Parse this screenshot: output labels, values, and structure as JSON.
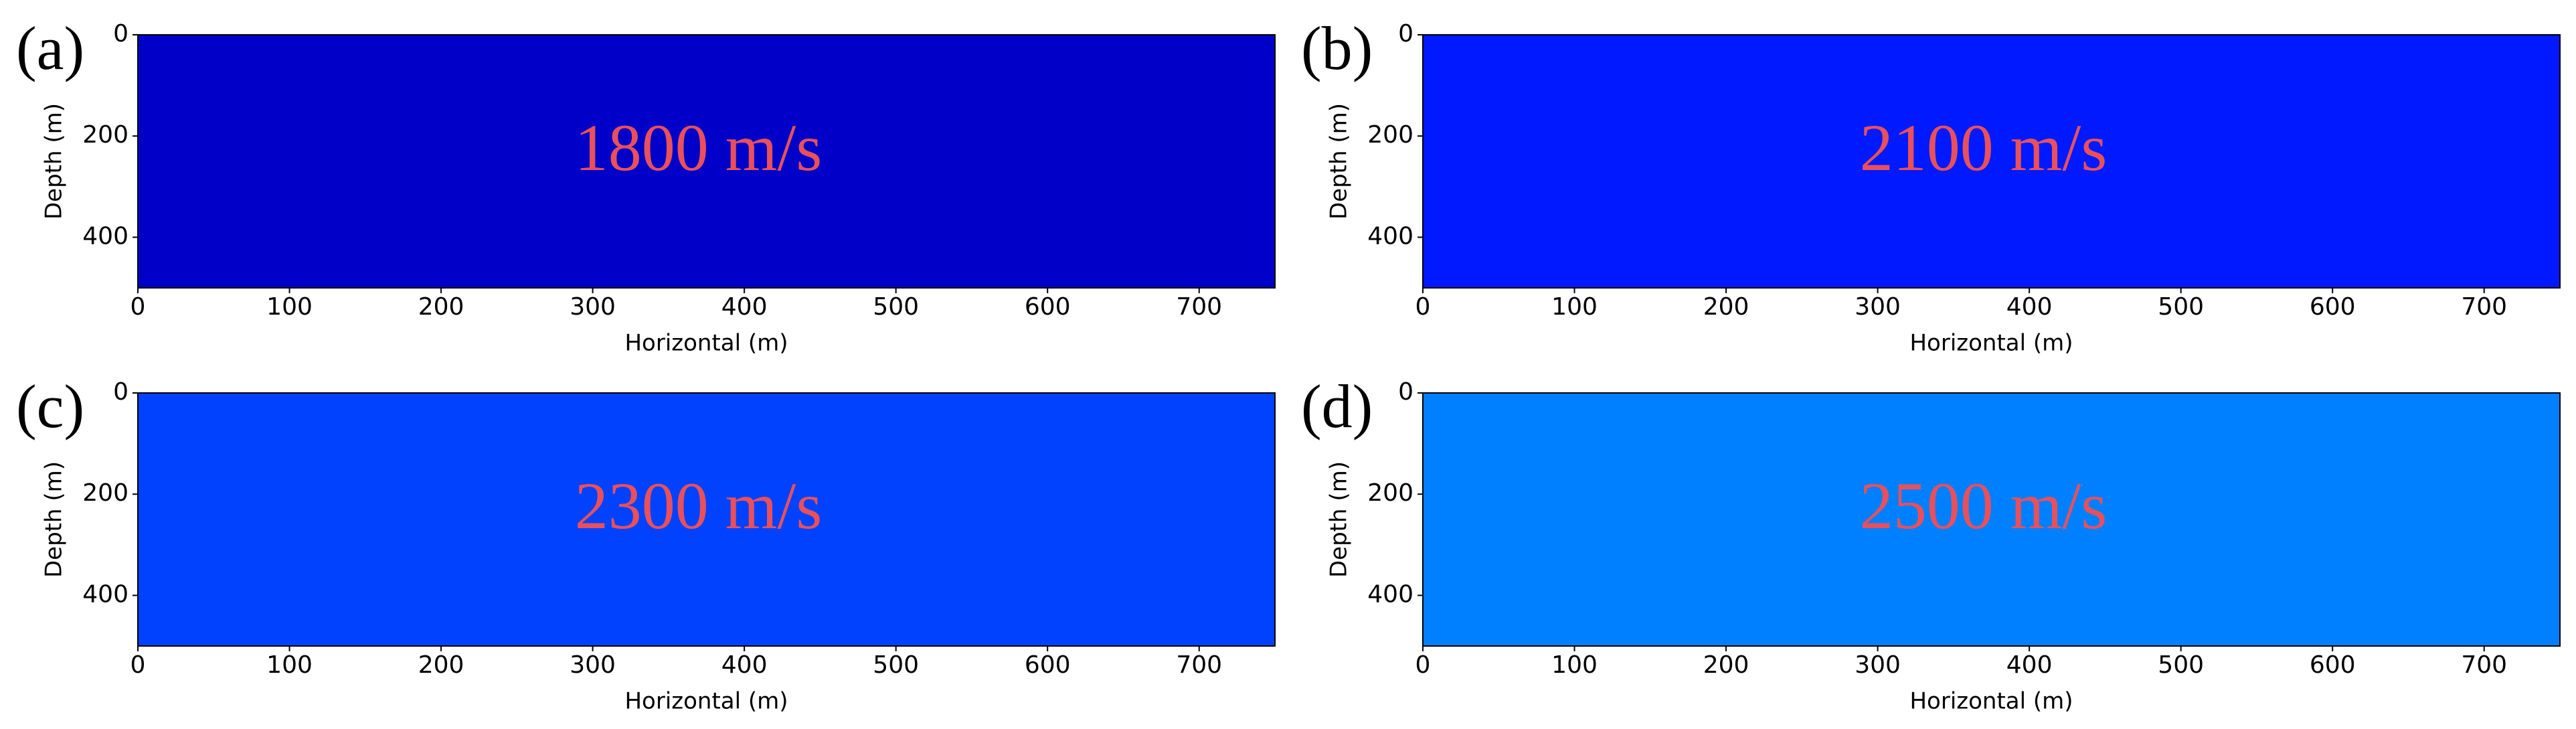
{
  "chart_data": [
    {
      "type": "heatmap",
      "panel_label": "(a)",
      "annotation": "1800 m/s",
      "color": "#0000c8",
      "annotation_color": "#e8505b",
      "xlabel": "Horizontal (m)",
      "ylabel": "Depth (m)",
      "xlim": [
        0,
        750
      ],
      "ylim": [
        500,
        0
      ],
      "xticks": [
        0,
        100,
        200,
        300,
        400,
        500,
        600,
        700
      ],
      "yticks": [
        0,
        200,
        400
      ]
    },
    {
      "type": "heatmap",
      "panel_label": "(b)",
      "annotation": "2100 m/s",
      "color": "#0019ff",
      "annotation_color": "#e8505b",
      "xlabel": "Horizontal (m)",
      "ylabel": "Depth (m)",
      "xlim": [
        0,
        750
      ],
      "ylim": [
        500,
        0
      ],
      "xticks": [
        0,
        100,
        200,
        300,
        400,
        500,
        600,
        700
      ],
      "yticks": [
        0,
        200,
        400
      ]
    },
    {
      "type": "heatmap",
      "panel_label": "(c)",
      "annotation": "2300 m/s",
      "color": "#0042ff",
      "annotation_color": "#e8505b",
      "xlabel": "Horizontal (m)",
      "ylabel": "Depth (m)",
      "xlim": [
        0,
        750
      ],
      "ylim": [
        500,
        0
      ],
      "xticks": [
        0,
        100,
        200,
        300,
        400,
        500,
        600,
        700
      ],
      "yticks": [
        0,
        200,
        400
      ]
    },
    {
      "type": "heatmap",
      "panel_label": "(d)",
      "annotation": "2500 m/s",
      "color": "#0080ff",
      "annotation_color": "#e8505b",
      "xlabel": "Horizontal (m)",
      "ylabel": "Depth (m)",
      "xlim": [
        0,
        750
      ],
      "ylim": [
        500,
        0
      ],
      "xticks": [
        0,
        100,
        200,
        300,
        400,
        500,
        600,
        700
      ],
      "yticks": [
        0,
        200,
        400
      ]
    }
  ]
}
